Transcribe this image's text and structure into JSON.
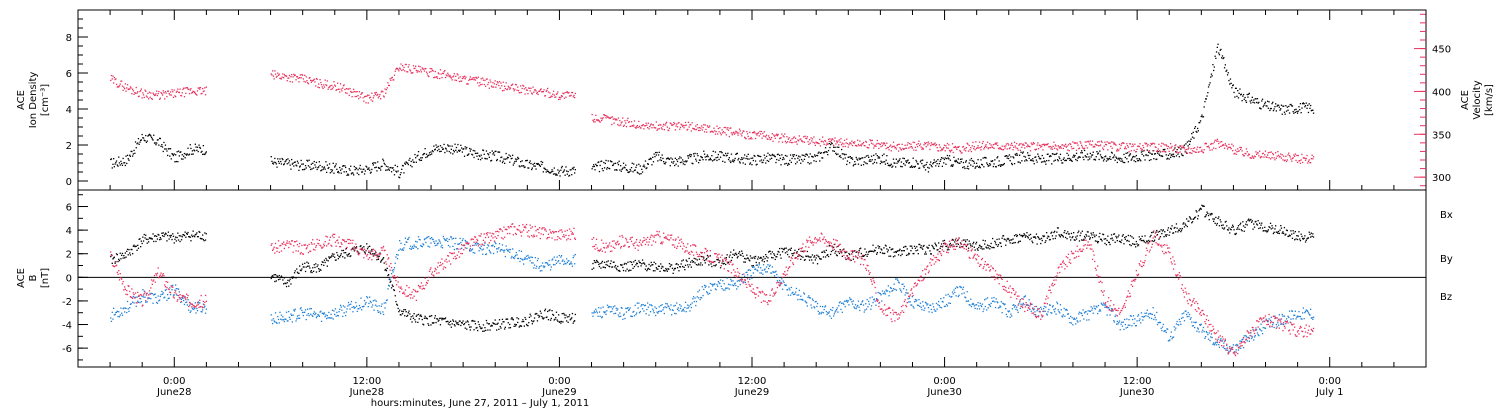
{
  "chart_data": [
    {
      "type": "scatter",
      "panel": "top",
      "left_axis": {
        "title_lines": [
          "ACE",
          "Ion Density",
          "[cm⁻³]"
        ],
        "range": [
          -0.5,
          9.5
        ],
        "ticks": [
          0,
          2,
          4,
          6,
          8
        ],
        "tick_labels": [
          "0",
          "2",
          "4",
          "6",
          "8"
        ],
        "color": "#000000"
      },
      "right_axis": {
        "title_lines": [
          "ACE",
          "Velocity",
          "[km/s]"
        ],
        "range": [
          285,
          495
        ],
        "ticks": [
          300,
          350,
          400,
          450
        ],
        "tick_labels": [
          "300",
          "350",
          "400",
          "450"
        ],
        "color": "#e8325e"
      },
      "series": [
        {
          "key": "density",
          "axis": "left",
          "color": "#000000",
          "x_hours": [
            -3.5,
            -2.5,
            -1.5,
            -0.5,
            0.5,
            1.5,
            6.5,
            7.5,
            8.5,
            9.5,
            10.5,
            11.5,
            12.5,
            13.5,
            14.5,
            15.5,
            16.5,
            17.5,
            18.5,
            19.5,
            20.5,
            21.5,
            22.5,
            23.5,
            24.5,
            26.5,
            27.5,
            28.5,
            29.5,
            30.5,
            31.5,
            32.5,
            33.5,
            34.5,
            35.5,
            36.5,
            37.5,
            38.5,
            39.5,
            40.5,
            41.5,
            42.5,
            43.5,
            44.5,
            45.5,
            46.5,
            47.5,
            48.5,
            49.5,
            50.5,
            51.5,
            52.5,
            53.5,
            54.5,
            55.5,
            56.5,
            57.5,
            58.5,
            59.5,
            60.5,
            61.5,
            62.5,
            63.5,
            64.5,
            65.5,
            66.5,
            67.5,
            68.5,
            69.5,
            70.5
          ],
          "y": [
            1.0,
            1.2,
            2.5,
            2.2,
            1.3,
            1.8,
            1.1,
            1.0,
            0.9,
            0.9,
            0.7,
            0.6,
            0.7,
            1.0,
            0.5,
            1.3,
            1.8,
            1.9,
            1.7,
            1.5,
            1.4,
            1.2,
            0.9,
            0.8,
            0.6,
            0.7,
            1.0,
            0.8,
            0.7,
            1.4,
            1.1,
            1.2,
            1.4,
            1.4,
            1.3,
            1.2,
            1.3,
            1.2,
            1.2,
            1.3,
            2.0,
            1.1,
            1.2,
            1.3,
            1.0,
            1.1,
            0.8,
            1.2,
            1.0,
            1.0,
            1.1,
            1.2,
            1.4,
            1.2,
            1.3,
            1.4,
            1.5,
            1.4,
            1.3,
            1.4,
            1.5,
            1.5,
            1.8,
            3.5,
            7.5,
            5.0,
            4.6,
            4.2,
            4.0,
            4.1
          ]
        },
        {
          "key": "velocity",
          "axis": "right",
          "color": "#e8325e",
          "x_hours": [
            -3.5,
            -2.5,
            -1.5,
            -0.5,
            0.5,
            1.5,
            6.5,
            7.5,
            8.5,
            9.5,
            10.5,
            11.5,
            12.5,
            13.5,
            14.5,
            15.5,
            16.5,
            17.5,
            18.5,
            19.5,
            20.5,
            21.5,
            22.5,
            23.5,
            24.5,
            26.5,
            27.5,
            28.5,
            29.5,
            30.5,
            31.5,
            32.5,
            33.5,
            34.5,
            35.5,
            36.5,
            37.5,
            38.5,
            39.5,
            40.5,
            41.5,
            42.5,
            43.5,
            44.5,
            45.5,
            46.5,
            47.5,
            48.5,
            49.5,
            50.5,
            51.5,
            52.5,
            53.5,
            54.5,
            55.5,
            56.5,
            57.5,
            58.5,
            59.5,
            60.5,
            61.5,
            62.5,
            63.5,
            64.5,
            65.5,
            66.5,
            67.5,
            68.5,
            69.5,
            70.5
          ],
          "y": [
            415,
            405,
            398,
            396,
            398,
            401,
            420,
            418,
            415,
            410,
            407,
            400,
            392,
            398,
            430,
            426,
            422,
            420,
            415,
            412,
            408,
            405,
            402,
            400,
            396,
            370,
            368,
            365,
            361,
            360,
            360,
            360,
            358,
            355,
            352,
            350,
            348,
            346,
            344,
            342,
            343,
            340,
            340,
            338,
            336,
            337,
            338,
            335,
            334,
            337,
            338,
            337,
            336,
            337,
            336,
            337,
            338,
            338,
            336,
            335,
            336,
            335,
            333,
            334,
            340,
            333,
            328,
            326,
            325,
            322
          ]
        }
      ]
    },
    {
      "type": "scatter",
      "panel": "bottom",
      "left_axis": {
        "title_lines": [
          "ACE",
          "B",
          "[nT]"
        ],
        "range": [
          -7.6,
          7.4
        ],
        "ticks": [
          -6,
          -4,
          -2,
          0,
          2,
          4,
          6
        ],
        "tick_labels": [
          "-6",
          "-4",
          "-2",
          "0",
          "2",
          "4",
          "6"
        ],
        "color": "#000000"
      },
      "legend_position": "right",
      "zero_line": true,
      "series": [
        {
          "key": "bx",
          "name": "Bx",
          "color": "#000000",
          "x_hours": [
            -3.5,
            -2.5,
            -1.5,
            -0.5,
            0.5,
            1.5,
            6.5,
            7.5,
            8.5,
            9.5,
            10.5,
            11.5,
            12.5,
            13.5,
            14.5,
            15.5,
            16.5,
            17.5,
            18.5,
            19.5,
            20.5,
            21.5,
            22.5,
            23.5,
            24.5,
            26.5,
            27.5,
            28.5,
            29.5,
            30.5,
            31.5,
            32.5,
            33.5,
            34.5,
            35.5,
            36.5,
            37.5,
            38.5,
            39.5,
            40.5,
            41.5,
            42.5,
            43.5,
            44.5,
            45.5,
            46.5,
            47.5,
            48.5,
            49.5,
            50.5,
            51.5,
            52.5,
            53.5,
            54.5,
            55.5,
            56.5,
            57.5,
            58.5,
            59.5,
            60.5,
            61.5,
            62.5,
            63.5,
            64.5,
            65.5,
            66.5,
            67.5,
            68.5,
            69.5,
            70.5
          ],
          "y": [
            1.5,
            2.0,
            3.2,
            3.5,
            3.4,
            3.6,
            0.2,
            -0.5,
            1.0,
            0.8,
            1.8,
            2.2,
            2.6,
            1.5,
            -2.8,
            -3.5,
            -3.6,
            -3.8,
            -4.0,
            -4.1,
            -4.0,
            -3.8,
            -3.6,
            -3.0,
            -3.4,
            1.0,
            1.2,
            0.9,
            1.1,
            1.0,
            0.8,
            1.2,
            1.5,
            1.3,
            2.1,
            1.4,
            1.8,
            2.2,
            2.0,
            1.5,
            2.5,
            1.8,
            2.2,
            2.5,
            2.0,
            2.5,
            2.4,
            2.8,
            3.0,
            2.6,
            3.0,
            3.2,
            3.5,
            3.2,
            3.8,
            3.5,
            3.6,
            3.2,
            3.4,
            3.0,
            3.5,
            4.0,
            4.5,
            5.8,
            4.8,
            4.0,
            4.6,
            4.3,
            4.0,
            3.5
          ]
        },
        {
          "key": "by",
          "name": "By",
          "color": "#1f7fd6",
          "x_hours": [
            -3.5,
            -2.5,
            -1.5,
            -0.5,
            0.5,
            1.5,
            6.5,
            7.5,
            8.5,
            9.5,
            10.5,
            11.5,
            12.5,
            13.5,
            14.5,
            15.5,
            16.5,
            17.5,
            18.5,
            19.5,
            20.5,
            21.5,
            22.5,
            23.5,
            24.5,
            26.5,
            27.5,
            28.5,
            29.5,
            30.5,
            31.5,
            32.5,
            33.5,
            34.5,
            35.5,
            36.5,
            37.5,
            38.5,
            39.5,
            40.5,
            41.5,
            42.5,
            43.5,
            44.5,
            45.5,
            46.5,
            47.5,
            48.5,
            49.5,
            50.5,
            51.5,
            52.5,
            53.5,
            54.5,
            55.5,
            56.5,
            57.5,
            58.5,
            59.5,
            60.5,
            61.5,
            62.5,
            63.5,
            64.5,
            65.5,
            66.5,
            67.5,
            68.5,
            69.5,
            70.5
          ],
          "y": [
            -3.2,
            -2.5,
            -1.5,
            -1.8,
            -1.0,
            -2.5,
            -3.5,
            -3.3,
            -3.0,
            -3.2,
            -3.0,
            -2.5,
            -2.0,
            -2.8,
            2.8,
            3.0,
            3.0,
            3.0,
            2.8,
            2.5,
            2.5,
            2.2,
            1.5,
            1.0,
            1.5,
            -3.0,
            -2.8,
            -3.0,
            -2.5,
            -2.8,
            -2.6,
            -2.5,
            -1.0,
            -0.5,
            -0.5,
            0.5,
            1.0,
            -0.8,
            -1.5,
            -2.5,
            -3.0,
            -2.0,
            -2.5,
            -1.5,
            -0.5,
            -2.0,
            -2.5,
            -2.0,
            -1.0,
            -2.5,
            -2.0,
            -3.0,
            -2.0,
            -3.0,
            -2.5,
            -3.5,
            -3.0,
            -2.5,
            -4.0,
            -3.5,
            -3.0,
            -5.0,
            -3.0,
            -4.5,
            -5.5,
            -6.0,
            -5.0,
            -4.0,
            -3.5,
            -3.0
          ]
        },
        {
          "key": "bz",
          "name": "Bz",
          "color": "#e8325e",
          "x_hours": [
            -3.5,
            -2.5,
            -1.5,
            -0.5,
            0.5,
            1.5,
            6.5,
            7.5,
            8.5,
            9.5,
            10.5,
            11.5,
            12.5,
            13.5,
            14.5,
            15.5,
            16.5,
            17.5,
            18.5,
            19.5,
            20.5,
            21.5,
            22.5,
            23.5,
            24.5,
            26.5,
            27.5,
            28.5,
            29.5,
            30.5,
            31.5,
            32.5,
            33.5,
            34.5,
            35.5,
            36.5,
            37.5,
            38.5,
            39.5,
            40.5,
            41.5,
            42.5,
            43.5,
            44.5,
            45.5,
            46.5,
            47.5,
            48.5,
            49.5,
            50.5,
            51.5,
            52.5,
            53.5,
            54.5,
            55.5,
            56.5,
            57.5,
            58.5,
            59.5,
            60.5,
            61.5,
            62.5,
            63.5,
            64.5,
            65.5,
            66.5,
            67.5,
            68.5,
            69.5,
            70.5
          ],
          "y": [
            1.8,
            -1.0,
            -2.0,
            0.5,
            -1.5,
            -2.0,
            2.5,
            2.8,
            2.5,
            3.0,
            3.2,
            2.8,
            2.0,
            2.2,
            -0.8,
            -1.5,
            0.5,
            1.5,
            2.5,
            3.2,
            3.5,
            4.2,
            4.0,
            3.8,
            3.7,
            3.0,
            2.5,
            3.2,
            2.8,
            3.5,
            3.2,
            2.5,
            2.0,
            1.5,
            0.5,
            -1.0,
            -2.0,
            0.5,
            2.5,
            3.5,
            3.0,
            2.0,
            1.5,
            -2.5,
            -3.5,
            -1.0,
            1.0,
            2.5,
            3.0,
            1.5,
            0.5,
            -1.0,
            -2.5,
            -3.0,
            0.5,
            2.0,
            3.0,
            -2.0,
            -3.0,
            0.5,
            3.5,
            2.0,
            -1.5,
            -3.0,
            -5.0,
            -6.5,
            -4.5,
            -3.5,
            -4.0,
            -4.5
          ]
        }
      ]
    }
  ],
  "x_axis": {
    "range_hours": [
      -6,
      78
    ],
    "ticks_hours": [
      0,
      12,
      24,
      36,
      48,
      60,
      72
    ],
    "tick_labels": [
      [
        "0:00",
        "June28"
      ],
      [
        "12:00",
        "June28"
      ],
      [
        "0:00",
        "June29"
      ],
      [
        "12:00",
        "June29"
      ],
      [
        "0:00",
        "June30"
      ],
      [
        "12:00",
        "June30"
      ],
      [
        "0:00",
        "July 1"
      ]
    ],
    "label": "hours:minutes, June 27, 2011 – July  1, 2011"
  },
  "legend_labels": {
    "bx": "Bx",
    "by": "By",
    "bz": "Bz"
  }
}
